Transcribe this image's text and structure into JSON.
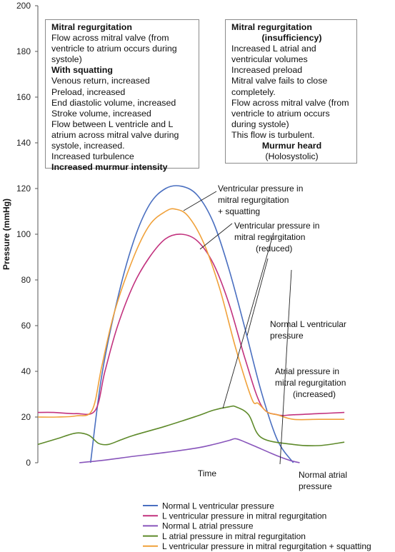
{
  "chart_data": {
    "type": "line",
    "ylabel": "Pressure (mmHg)",
    "xlabel": "Time",
    "ylim": [
      0,
      200
    ],
    "yticks": [
      0,
      20,
      40,
      60,
      80,
      100,
      120,
      140,
      160,
      180,
      200
    ],
    "x_range": [
      0,
      100
    ],
    "series": [
      {
        "name": "Normal L ventricular pressure",
        "color": "#4a6fc0",
        "x": [
          16.5,
          20,
          25,
          30,
          35,
          40,
          45,
          50,
          55,
          60,
          65,
          70,
          75,
          80
        ],
        "y": [
          0,
          38,
          72,
          97,
          113,
          120,
          121,
          117,
          105,
          84,
          58,
          31,
          10,
          0
        ]
      },
      {
        "name": "L ventricular pressure in mitral regurgitation",
        "color": "#c2327e",
        "x": [
          0,
          5,
          12,
          18,
          21,
          25,
          30,
          35,
          40,
          45,
          50,
          55,
          60,
          65,
          70,
          75,
          80,
          88,
          96
        ],
        "y": [
          22,
          22,
          21.5,
          23,
          40,
          60,
          78,
          90,
          98,
          100,
          97,
          87,
          69,
          45,
          25,
          21,
          21,
          21.5,
          22
        ]
      },
      {
        "name": "Normal L atrial pressure",
        "color": "#8855bb",
        "x": [
          13,
          20,
          30,
          40,
          50,
          55,
          60,
          62,
          65,
          70,
          75,
          79,
          82
        ],
        "y": [
          0,
          1,
          2.8,
          4.5,
          6.5,
          8,
          9.8,
          10.5,
          9,
          6,
          3,
          1,
          0
        ]
      },
      {
        "name": "L atrial pressure in mitral regurgitation",
        "color": "#5e8a2a",
        "x": [
          0,
          6,
          12,
          16,
          19,
          22,
          26,
          30,
          40,
          50,
          55,
          60,
          62,
          66,
          70,
          80,
          88,
          96
        ],
        "y": [
          8,
          10.5,
          13,
          12,
          8.5,
          8,
          10,
          12,
          16,
          20.5,
          23,
          24.5,
          24.5,
          21,
          11,
          8,
          7.5,
          9
        ]
      },
      {
        "name": "L ventricular pressure in mitral regurgitation + squatting",
        "color": "#f0a13a",
        "x": [
          0,
          6,
          12,
          17,
          20,
          24,
          30,
          35,
          40,
          43,
          47,
          52,
          57,
          62,
          67,
          69,
          72,
          75,
          80,
          88,
          96
        ],
        "y": [
          20,
          20,
          20.5,
          23,
          42,
          66,
          90,
          104,
          110,
          111,
          108,
          96,
          76,
          50,
          28,
          26,
          22,
          21,
          19,
          19,
          19
        ]
      }
    ],
    "annotations": [
      {
        "text": [
          "Ventricular pressure in",
          "mitral regurgitation",
          "+ squatting"
        ]
      },
      {
        "text": [
          "Ventricular pressure in",
          "mitral regurgitation",
          "(reduced)"
        ]
      },
      {
        "text": [
          "Normal L ventricular",
          "pressure"
        ]
      },
      {
        "text": [
          "Atrial pressure in",
          "mitral regurgitation",
          "(increased)"
        ]
      },
      {
        "text": [
          "Normal atrial",
          "pressure"
        ]
      }
    ],
    "legend_position": "bottom"
  },
  "boxes": {
    "left": {
      "title": "Mitral regurgitation",
      "lines1": [
        "Flow across mitral valve (from",
        "ventricle to atrium occurs during",
        "systole)"
      ],
      "subtitle": "With squatting",
      "lines2": [
        "Venous return, increased",
        "Preload, increased",
        "End diastolic volume, increased",
        "Stroke volume, increased",
        "Flow between L ventricle and L",
        "atrium across mitral valve during",
        "systole, increased.",
        "Increased turbulence"
      ],
      "footer": "Increased murmur intensity"
    },
    "right": {
      "title1": "Mitral regurgitation",
      "title2": "(insufficiency)",
      "lines": [
        "Increased L atrial and",
        "ventricular volumes",
        "Increased preload",
        "Mitral valve fails to close",
        "completely.",
        "Flow across mitral valve (from",
        "ventricle to atrium occurs",
        "during systole)",
        "This flow is turbulent."
      ],
      "heard": "Murmur heard",
      "holo": "(Holosystolic)"
    }
  }
}
